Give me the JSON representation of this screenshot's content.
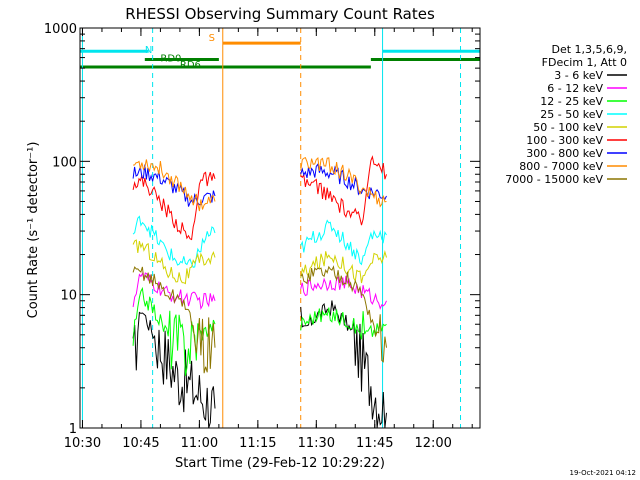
{
  "chart_data": {
    "type": "line",
    "title": "RHESSI Observing Summary Count Rates",
    "xlabel": "Start Time (29-Feb-12 10:29:22)",
    "ylabel": "Count Rate (s⁻¹ detector⁻¹)",
    "y_scale": "log",
    "ylim": [
      1,
      1000
    ],
    "xlim": [
      "10:29:22",
      "12:12:00"
    ],
    "x_ticks": [
      "10:30",
      "10:45",
      "11:00",
      "11:15",
      "11:30",
      "11:45",
      "12:00"
    ],
    "y_ticks": [
      "1",
      "10",
      "100",
      "1000"
    ],
    "grid": false,
    "legend_position": "right",
    "legend_header": [
      "Det 1,3,5,6,9,",
      "FDecim 1, Att 0"
    ],
    "timestamp": "19-Oct-2021 04:12",
    "annotations": [
      {
        "text": "N",
        "color": "#00e5ee"
      },
      {
        "text": "RD0",
        "color": "#008000"
      },
      {
        "text": "RD6",
        "color": "#008000"
      },
      {
        "text": "S",
        "color": "#ff8c00"
      }
    ],
    "state_bars": [
      {
        "label": "N",
        "color": "#00e5ee",
        "level": 670,
        "segments": [
          [
            "10:29:22",
            "10:47"
          ],
          [
            "11:47",
            "12:12"
          ]
        ]
      },
      {
        "label": "S",
        "color": "#ff8c00",
        "level": 770,
        "segments": [
          [
            "11:06",
            "11:26"
          ]
        ]
      },
      {
        "label": "RD0",
        "color": "#008000",
        "level": 580,
        "segments": [
          [
            "10:46",
            "11:05"
          ],
          [
            "11:44",
            "12:12"
          ]
        ]
      },
      {
        "label": "RD6",
        "color": "#008000",
        "level": 510,
        "segments": [
          [
            "10:29:22",
            "11:26"
          ],
          [
            "11:26",
            "11:44"
          ]
        ]
      }
    ],
    "vlines": [
      {
        "time": "10:30",
        "color": "#00e5ee",
        "dashed": false
      },
      {
        "time": "10:48",
        "color": "#00e5ee",
        "dashed": true
      },
      {
        "time": "11:06",
        "color": "#ff8c00",
        "dashed": false
      },
      {
        "time": "11:26",
        "color": "#ff8c00",
        "dashed": true
      },
      {
        "time": "11:47",
        "color": "#00e5ee",
        "dashed": false
      },
      {
        "time": "12:07",
        "color": "#00e5ee",
        "dashed": true
      }
    ],
    "series": [
      {
        "name": "3 - 6 keV",
        "color": "#000000",
        "segments": [
          {
            "x": [
              "10:43",
              "10:45",
              "10:47",
              "10:50",
              "10:54",
              "10:58",
              "11:02",
              "11:04"
            ],
            "y": [
              3,
              8,
              6,
              4,
              2.5,
              2,
              1.6,
              1.4
            ]
          },
          {
            "x": [
              "11:26",
              "11:30",
              "11:34",
              "11:38",
              "11:42",
              "11:46",
              "11:48"
            ],
            "y": [
              5,
              7,
              8,
              6,
              3,
              1.6,
              1.3
            ]
          }
        ]
      },
      {
        "name": "6 - 12 keV",
        "color": "#ff00ff",
        "segments": [
          {
            "x": [
              "10:43",
              "10:45",
              "10:48",
              "10:52",
              "10:56",
              "11:00",
              "11:04"
            ],
            "y": [
              9,
              14,
              12,
              10,
              9.5,
              9,
              9
            ]
          },
          {
            "x": [
              "11:26",
              "11:30",
              "11:34",
              "11:38",
              "11:42",
              "11:46",
              "11:48"
            ],
            "y": [
              11,
              12,
              12.5,
              12,
              10.5,
              9,
              9
            ]
          }
        ]
      },
      {
        "name": "12 - 25 keV",
        "color": "#00ff00",
        "segments": [
          {
            "x": [
              "10:43",
              "10:45",
              "10:48",
              "10:52",
              "10:56",
              "11:00",
              "11:04"
            ],
            "y": [
              5,
              10,
              8,
              5,
              4,
              5,
              6
            ]
          },
          {
            "x": [
              "11:26",
              "11:30",
              "11:34",
              "11:38",
              "11:42",
              "11:46",
              "11:48"
            ],
            "y": [
              6,
              7,
              7,
              6.5,
              5,
              5.5,
              6
            ]
          }
        ]
      },
      {
        "name": "25 - 50 keV",
        "color": "#00ffff",
        "segments": [
          {
            "x": [
              "10:43",
              "10:45",
              "10:47",
              "10:50",
              "10:54",
              "10:58",
              "11:02",
              "11:04"
            ],
            "y": [
              28,
              38,
              32,
              24,
              18,
              16,
              28,
              29
            ]
          },
          {
            "x": [
              "11:26",
              "11:30",
              "11:34",
              "11:38",
              "11:42",
              "11:44",
              "11:48"
            ],
            "y": [
              22,
              28,
              33,
              24,
              18,
              28,
              28
            ]
          }
        ]
      },
      {
        "name": "50 - 100 keV",
        "color": "#d2d200",
        "segments": [
          {
            "x": [
              "10:43",
              "10:45",
              "10:48",
              "10:52",
              "10:56",
              "11:00",
              "11:04"
            ],
            "y": [
              22,
              24,
              20,
              15,
              13,
              18,
              19
            ]
          },
          {
            "x": [
              "11:26",
              "11:30",
              "11:34",
              "11:38",
              "11:42",
              "11:44",
              "11:48"
            ],
            "y": [
              14,
              17,
              20,
              16,
              13,
              18,
              19
            ]
          }
        ]
      },
      {
        "name": "100 - 300 keV",
        "color": "#ff0000",
        "segments": [
          {
            "x": [
              "10:43",
              "10:46",
              "10:50",
              "10:54",
              "10:58",
              "11:00",
              "11:04"
            ],
            "y": [
              70,
              70,
              50,
              35,
              25,
              72,
              74
            ]
          },
          {
            "x": [
              "11:26",
              "11:30",
              "11:34",
              "11:38",
              "11:42",
              "11:44",
              "11:48"
            ],
            "y": [
              70,
              66,
              52,
              42,
              35,
              115,
              80
            ]
          }
        ]
      },
      {
        "name": "300 - 800 keV",
        "color": "#0000ff",
        "segments": [
          {
            "x": [
              "10:43",
              "10:46",
              "10:50",
              "10:54",
              "10:58",
              "11:00",
              "11:04"
            ],
            "y": [
              80,
              83,
              75,
              62,
              50,
              52,
              55
            ]
          },
          {
            "x": [
              "11:26",
              "11:30",
              "11:34",
              "11:38",
              "11:42",
              "11:46",
              "11:48"
            ],
            "y": [
              80,
              85,
              82,
              72,
              60,
              58,
              55
            ]
          }
        ]
      },
      {
        "name": "800 - 7000 keV",
        "color": "#ff8c00",
        "segments": [
          {
            "x": [
              "10:43",
              "10:46",
              "10:50",
              "10:54",
              "10:58",
              "11:00",
              "11:04"
            ],
            "y": [
              95,
              98,
              88,
              70,
              55,
              48,
              50
            ]
          },
          {
            "x": [
              "11:26",
              "11:30",
              "11:34",
              "11:38",
              "11:42",
              "11:46",
              "11:48"
            ],
            "y": [
              95,
              98,
              92,
              78,
              62,
              52,
              50
            ]
          }
        ]
      },
      {
        "name": "7000 - 15000 keV",
        "color": "#8b7500",
        "segments": [
          {
            "x": [
              "10:43",
              "10:45",
              "10:48",
              "10:52",
              "10:56",
              "11:00",
              "11:04"
            ],
            "y": [
              14,
              15,
              13,
              10,
              9,
              4,
              4
            ]
          },
          {
            "x": [
              "11:26",
              "11:30",
              "11:34",
              "11:38",
              "11:42",
              "11:46",
              "11:48"
            ],
            "y": [
              13,
              15,
              15,
              13,
              10,
              4.5,
              4
            ]
          }
        ]
      }
    ]
  }
}
